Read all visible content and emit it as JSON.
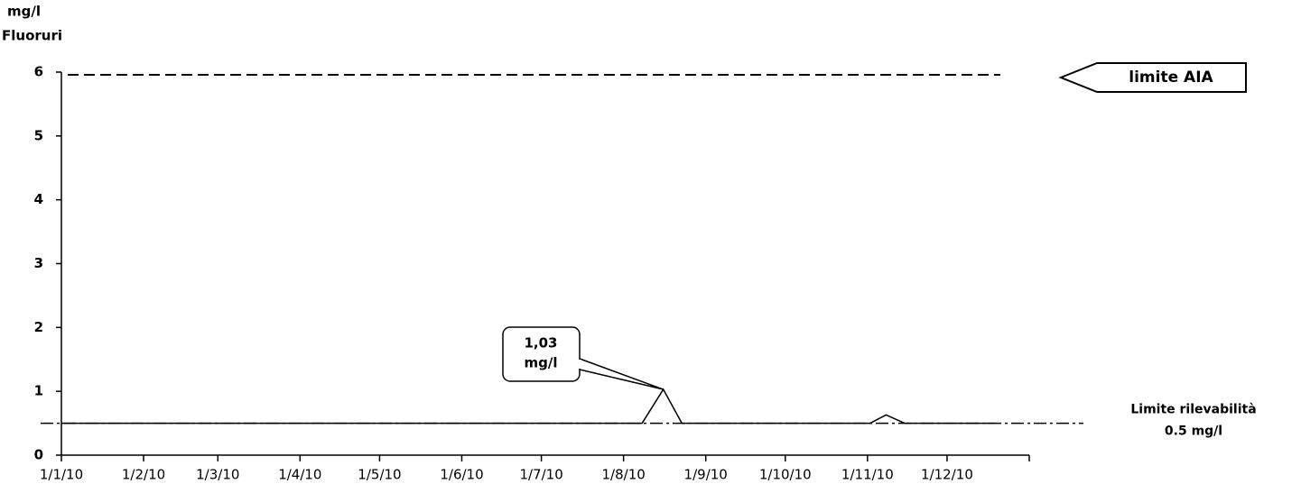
{
  "chart_data": {
    "type": "line",
    "y_unit": "mg/l",
    "y_label": "Fluoruri",
    "xlim": [
      0,
      365
    ],
    "xticks": [
      {
        "value": 0,
        "label": "1/1/10"
      },
      {
        "value": 31,
        "label": "1/2/10"
      },
      {
        "value": 59,
        "label": "1/3/10"
      },
      {
        "value": 90,
        "label": "1/4/10"
      },
      {
        "value": 120,
        "label": "1/5/10"
      },
      {
        "value": 151,
        "label": "1/6/10"
      },
      {
        "value": 181,
        "label": "1/7/10"
      },
      {
        "value": 212,
        "label": "1/8/10"
      },
      {
        "value": 243,
        "label": "1/9/10"
      },
      {
        "value": 273,
        "label": "1/10/10"
      },
      {
        "value": 304,
        "label": "1/11/10"
      },
      {
        "value": 334,
        "label": "1/12/10"
      }
    ],
    "ylim": [
      0,
      6
    ],
    "yticks": [
      0,
      1,
      2,
      3,
      4,
      5,
      6
    ],
    "series": [
      {
        "color": "#000000",
        "x": [
          0,
          219,
          227,
          234,
          305,
          311,
          318,
          352
        ],
        "values": [
          0.5,
          0.5,
          1.03,
          0.5,
          0.5,
          0.63,
          0.5,
          0.5
        ]
      }
    ],
    "reference_lines": [
      {
        "value": 6,
        "style": "dashed",
        "label": [
          "limite AIA"
        ]
      },
      {
        "value": 0.5,
        "style": "dashdot",
        "label": [
          "Limite rilevabilità",
          "0.5 mg/l"
        ]
      }
    ],
    "annotation": {
      "x": 227,
      "y": 1.03,
      "text": [
        "1,03",
        "mg/l"
      ]
    }
  }
}
